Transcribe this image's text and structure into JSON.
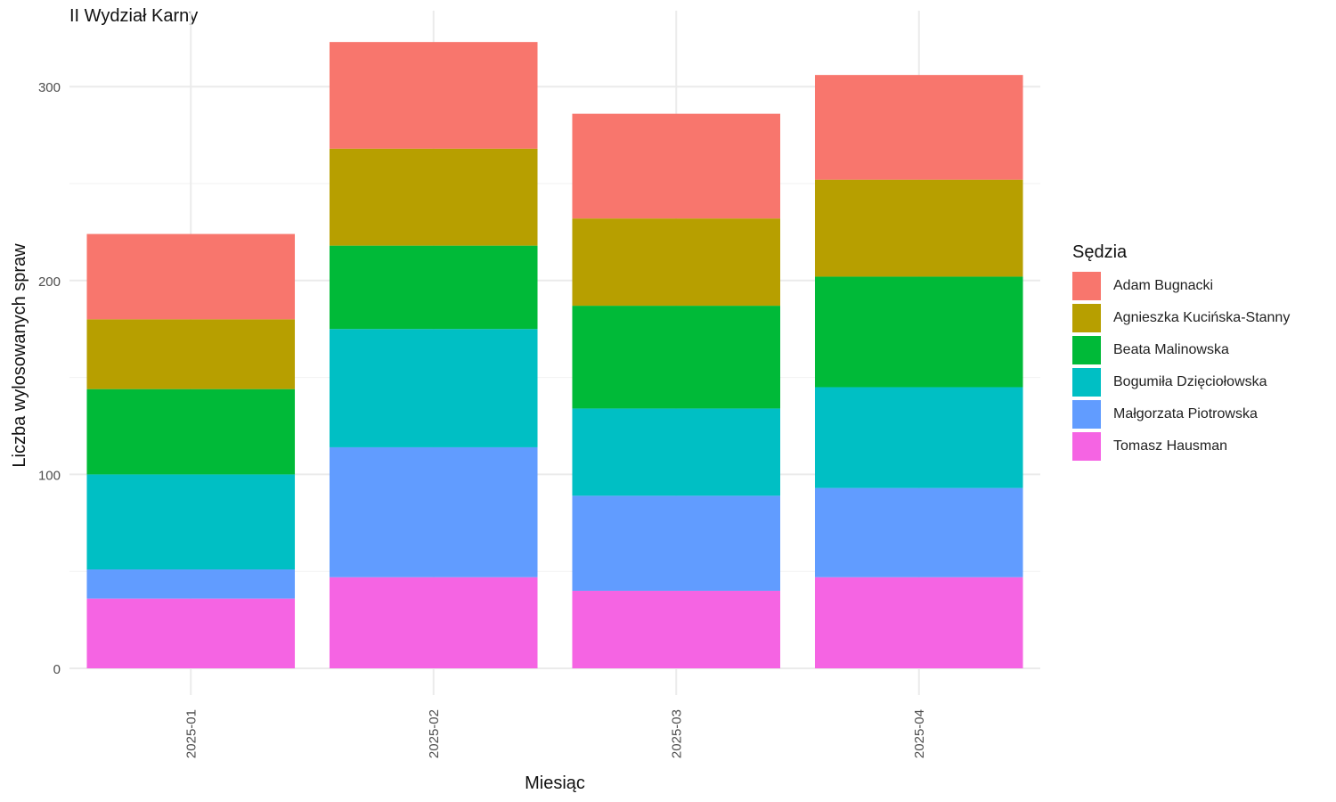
{
  "chart_data": {
    "type": "bar",
    "stacked": true,
    "title": "II Wydział Karny",
    "xlabel": "Miesiąc",
    "ylabel": "Liczba wylosowanych spraw",
    "ylim": [
      0,
      330
    ],
    "yticks": [
      0,
      100,
      200,
      300
    ],
    "grid": true,
    "legend_title": "Sędzia",
    "legend_position": "right",
    "categories": [
      "2025-01",
      "2025-02",
      "2025-03",
      "2025-04"
    ],
    "series": [
      {
        "name": "Adam Bugnacki",
        "color": "#F8766D",
        "values": [
          44,
          55,
          54,
          54
        ]
      },
      {
        "name": "Agnieszka Kucińska-Stanny",
        "color": "#B79F00",
        "values": [
          36,
          50,
          45,
          50
        ]
      },
      {
        "name": "Beata Malinowska",
        "color": "#00BA38",
        "values": [
          44,
          43,
          53,
          57
        ]
      },
      {
        "name": "Bogumiła Dzięciołowska",
        "color": "#00BFC4",
        "values": [
          49,
          61,
          45,
          52
        ]
      },
      {
        "name": "Małgorzata Piotrowska",
        "color": "#619CFF",
        "values": [
          15,
          67,
          49,
          46
        ]
      },
      {
        "name": "Tomasz Hausman",
        "color": "#F564E3",
        "values": [
          36,
          47,
          40,
          47
        ]
      }
    ]
  }
}
